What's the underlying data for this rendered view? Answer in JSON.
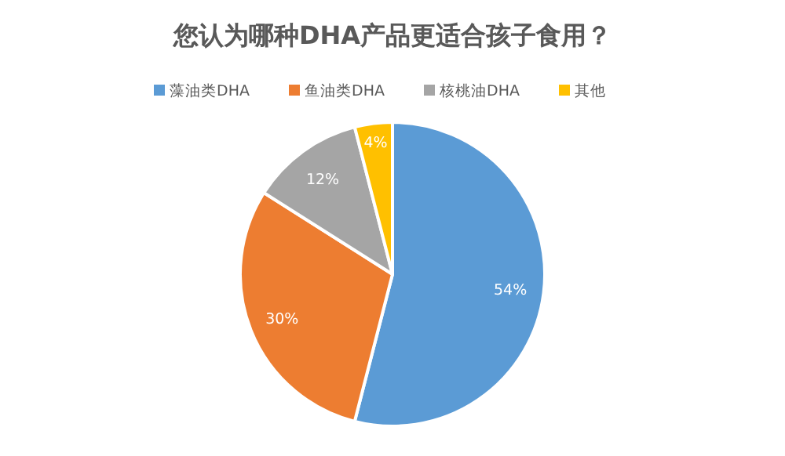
{
  "chart_data": {
    "type": "pie",
    "title": "您认为哪种DHA产品更适合孩子食用？",
    "categories": [
      "藻油类DHA",
      "鱼油类DHA",
      "核桃油DHA",
      "其他"
    ],
    "values": [
      54,
      30,
      12,
      4
    ],
    "colors": [
      "#5b9bd5",
      "#ed7d31",
      "#a5a5a5",
      "#ffc000"
    ],
    "value_labels": [
      "54%",
      "30%",
      "12%",
      "4%"
    ],
    "legend": "top"
  }
}
